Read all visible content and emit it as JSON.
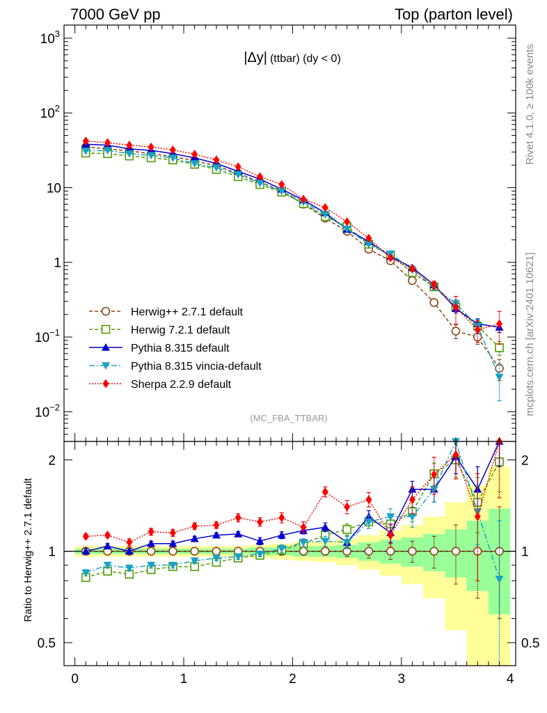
{
  "header": {
    "left": "7000 GeV pp",
    "right": "Top (parton level)"
  },
  "side_labels": {
    "rivet": "Rivet 4.1.0, ≥ 100k events",
    "mcplots": "mcplots.cern.ch [arXiv:2401.10621]"
  },
  "chart_data": {
    "type": "line",
    "title_main": "|Δy|",
    "title_sub": "(ttbar) (dy < 0)",
    "analysis": "(MC_FBA_TTBAR)",
    "xlim": [
      -0.1,
      4.05
    ],
    "x_ticks": [
      "0",
      "1",
      "2",
      "3",
      "4"
    ],
    "x_tick_values": [
      0,
      1,
      2,
      3,
      4
    ],
    "upper": {
      "yscale": "log",
      "ylim": [
        0.004,
        1500
      ],
      "y_tick_labels": [
        {
          "value": 1000,
          "base": "10",
          "exp": "3"
        },
        {
          "value": 100,
          "base": "10",
          "exp": "2"
        },
        {
          "value": 10,
          "base": "10",
          "exp": ""
        },
        {
          "value": 1,
          "base": "1",
          "exp": ""
        },
        {
          "value": 0.1,
          "base": "10",
          "exp": "−1"
        },
        {
          "value": 0.01,
          "base": "10",
          "exp": "−2"
        }
      ]
    },
    "ratio": {
      "ylabel": "Ratio to Herwig++ 2.7.1 default",
      "yscale": "log",
      "ylim": [
        0.42,
        2.3
      ],
      "y_ticks": [
        "2",
        "1",
        "0.5"
      ],
      "y_tick_values": [
        2,
        1,
        0.5
      ]
    },
    "x": [
      0.1,
      0.3,
      0.5,
      0.7,
      0.9,
      1.1,
      1.3,
      1.5,
      1.7,
      1.9,
      2.1,
      2.3,
      2.5,
      2.7,
      2.9,
      3.1,
      3.3,
      3.5,
      3.7,
      3.9
    ],
    "bin_edges": [
      0,
      0.2,
      0.4,
      0.6,
      0.8,
      1.0,
      1.2,
      1.4,
      1.6,
      1.8,
      2.0,
      2.2,
      2.4,
      2.6,
      2.8,
      3.0,
      3.2,
      3.4,
      3.6,
      3.8,
      4.0
    ],
    "bands": {
      "green": [
        0.02,
        0.02,
        0.02,
        0.02,
        0.02,
        0.02,
        0.02,
        0.02,
        0.03,
        0.03,
        0.04,
        0.04,
        0.05,
        0.07,
        0.09,
        0.11,
        0.14,
        0.18,
        0.26,
        0.38
      ],
      "yellow": [
        0.04,
        0.04,
        0.04,
        0.04,
        0.04,
        0.04,
        0.04,
        0.04,
        0.05,
        0.06,
        0.07,
        0.08,
        0.1,
        0.13,
        0.17,
        0.22,
        0.3,
        0.45,
        0.65,
        0.9
      ]
    },
    "series": [
      {
        "name": "Herwig++ 2.7.1 default",
        "color": "#8b4513",
        "marker": "open-circle",
        "dash": "5,3",
        "values": [
          35.0,
          33.0,
          31.0,
          28.5,
          26.0,
          23.0,
          19.5,
          15.5,
          12.0,
          9.0,
          6.0,
          3.9,
          2.6,
          1.5,
          1.05,
          0.57,
          0.29,
          0.12,
          0.1,
          0.038
        ],
        "errors": [
          0.6,
          0.5,
          0.5,
          0.5,
          0.4,
          0.4,
          0.4,
          0.3,
          0.3,
          0.2,
          0.15,
          0.1,
          0.08,
          0.06,
          0.05,
          0.04,
          0.03,
          0.025,
          0.02,
          0.012
        ],
        "ratio": [
          1.0,
          1.0,
          1.0,
          1.0,
          1.0,
          1.0,
          1.0,
          1.0,
          1.0,
          1.0,
          1.0,
          1.0,
          1.0,
          1.0,
          1.0,
          1.0,
          1.0,
          1.0,
          1.0,
          1.0
        ],
        "ratio_errors": [
          0.02,
          0.02,
          0.02,
          0.02,
          0.02,
          0.02,
          0.02,
          0.02,
          0.02,
          0.03,
          0.03,
          0.03,
          0.04,
          0.05,
          0.06,
          0.08,
          0.12,
          0.22,
          0.3,
          0.4
        ]
      },
      {
        "name": "Herwig 7.2.1 default",
        "color": "#4e9a06",
        "marker": "open-square",
        "dash": "5,3",
        "values": [
          29.0,
          28.5,
          26.5,
          25.0,
          23.5,
          20.5,
          17.5,
          14.0,
          11.0,
          8.7,
          6.1,
          4.1,
          3.0,
          1.75,
          1.25,
          0.73,
          0.47,
          0.25,
          0.14,
          0.072
        ],
        "errors": [
          0.5,
          0.5,
          0.5,
          0.4,
          0.4,
          0.4,
          0.3,
          0.3,
          0.25,
          0.2,
          0.15,
          0.1,
          0.08,
          0.06,
          0.05,
          0.04,
          0.03,
          0.025,
          0.02,
          0.015
        ],
        "ratio": [
          0.82,
          0.86,
          0.84,
          0.87,
          0.89,
          0.89,
          0.92,
          0.95,
          0.97,
          1.01,
          1.06,
          1.13,
          1.18,
          1.25,
          1.23,
          1.35,
          1.8,
          2.0,
          1.45,
          1.97
        ],
        "ratio_errors": [
          0.02,
          0.02,
          0.02,
          0.02,
          0.02,
          0.02,
          0.02,
          0.02,
          0.02,
          0.03,
          0.03,
          0.04,
          0.05,
          0.06,
          0.08,
          0.1,
          0.15,
          0.25,
          0.3,
          0.4
        ]
      },
      {
        "name": "Pythia 8.315 default",
        "color": "#0000cd",
        "marker": "filled-up-triangle",
        "dash": "",
        "values": [
          38.0,
          37.0,
          33.0,
          31.5,
          28.5,
          25.0,
          21.0,
          16.5,
          13.0,
          9.5,
          6.8,
          4.6,
          2.75,
          1.9,
          1.2,
          0.85,
          0.5,
          0.24,
          0.15,
          0.135
        ],
        "errors": [
          0.6,
          0.6,
          0.5,
          0.5,
          0.5,
          0.4,
          0.4,
          0.3,
          0.3,
          0.2,
          0.15,
          0.1,
          0.08,
          0.06,
          0.05,
          0.04,
          0.04,
          0.03,
          0.025,
          0.02
        ],
        "ratio": [
          1.0,
          1.04,
          1.0,
          1.06,
          1.06,
          1.1,
          1.13,
          1.14,
          1.08,
          1.13,
          1.17,
          1.2,
          1.07,
          1.3,
          1.15,
          1.6,
          1.6,
          2.05,
          1.6,
          2.3
        ],
        "ratio_errors": [
          0.02,
          0.02,
          0.02,
          0.02,
          0.02,
          0.02,
          0.02,
          0.02,
          0.03,
          0.03,
          0.03,
          0.04,
          0.05,
          0.06,
          0.08,
          0.1,
          0.15,
          0.25,
          0.3,
          0.4
        ]
      },
      {
        "name": "Pythia 8.315 vincia-default",
        "color": "#1ba1c6",
        "marker": "filled-down-triangle",
        "dash": "8,3,2,3",
        "values": [
          31.0,
          31.5,
          28.5,
          27.0,
          25.0,
          21.0,
          18.5,
          15.0,
          11.5,
          9.0,
          6.4,
          4.4,
          2.8,
          1.75,
          1.3,
          0.8,
          0.47,
          0.28,
          0.14,
          0.029
        ],
        "errors": [
          0.5,
          0.5,
          0.5,
          0.4,
          0.4,
          0.4,
          0.3,
          0.3,
          0.25,
          0.2,
          0.15,
          0.1,
          0.08,
          0.06,
          0.05,
          0.05,
          0.04,
          0.04,
          0.03,
          0.015
        ],
        "ratio": [
          0.85,
          0.9,
          0.88,
          0.9,
          0.9,
          0.93,
          0.95,
          0.96,
          0.98,
          1.02,
          1.07,
          1.08,
          1.07,
          1.25,
          1.3,
          1.3,
          1.6,
          2.3,
          1.35,
          0.81
        ],
        "ratio_errors": [
          0.02,
          0.02,
          0.02,
          0.02,
          0.02,
          0.02,
          0.02,
          0.02,
          0.02,
          0.03,
          0.03,
          0.04,
          0.05,
          0.06,
          0.08,
          0.1,
          0.15,
          0.25,
          0.3,
          0.45
        ]
      },
      {
        "name": "Sherpa 2.2.9 default",
        "color": "#ff0000",
        "marker": "filled-diamond",
        "dash": "2,2",
        "values": [
          42.0,
          40.0,
          37.0,
          35.0,
          32.0,
          28.0,
          23.5,
          19.0,
          14.0,
          11.0,
          7.0,
          5.4,
          3.5,
          2.1,
          1.15,
          0.82,
          0.5,
          0.25,
          0.125,
          0.15
        ],
        "errors": [
          0.7,
          0.6,
          0.6,
          0.5,
          0.5,
          0.5,
          0.4,
          0.3,
          0.3,
          0.25,
          0.2,
          0.15,
          0.1,
          0.08,
          0.06,
          0.06,
          0.06,
          0.1,
          0.04,
          0.07
        ],
        "ratio": [
          1.12,
          1.13,
          1.07,
          1.16,
          1.15,
          1.21,
          1.22,
          1.29,
          1.25,
          1.29,
          1.2,
          1.57,
          1.4,
          1.48,
          1.13,
          1.48,
          1.79,
          2.08,
          1.3,
          2.3
        ],
        "ratio_errors": [
          0.02,
          0.02,
          0.03,
          0.03,
          0.03,
          0.03,
          0.03,
          0.04,
          0.04,
          0.05,
          0.05,
          0.06,
          0.07,
          0.08,
          0.1,
          0.15,
          0.25,
          0.35,
          0.5,
          0.8
        ]
      }
    ]
  }
}
